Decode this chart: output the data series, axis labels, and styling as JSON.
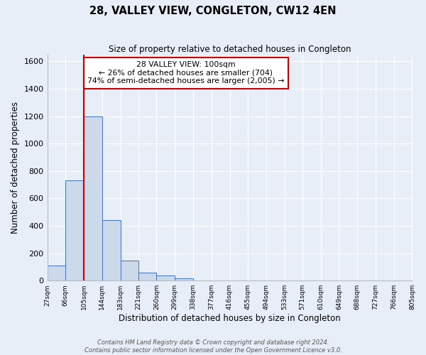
{
  "title": "28, VALLEY VIEW, CONGLETON, CW12 4EN",
  "subtitle": "Size of property relative to detached houses in Congleton",
  "xlabel": "Distribution of detached houses by size in Congleton",
  "ylabel": "Number of detached properties",
  "bin_edges": [
    27,
    66,
    105,
    144,
    183,
    221,
    260,
    299,
    338,
    377,
    416,
    455,
    494,
    533,
    571,
    610,
    649,
    688,
    727,
    766,
    805
  ],
  "bin_labels": [
    "27sqm",
    "66sqm",
    "105sqm",
    "144sqm",
    "183sqm",
    "221sqm",
    "260sqm",
    "299sqm",
    "338sqm",
    "377sqm",
    "416sqm",
    "455sqm",
    "494sqm",
    "533sqm",
    "571sqm",
    "610sqm",
    "649sqm",
    "688sqm",
    "727sqm",
    "766sqm",
    "805sqm"
  ],
  "counts": [
    110,
    730,
    1200,
    440,
    145,
    60,
    35,
    15,
    0,
    0,
    0,
    0,
    0,
    0,
    0,
    0,
    0,
    0,
    0,
    0
  ],
  "bar_facecolor": "#ccd9ea",
  "bar_edgecolor": "#4472c4",
  "background_color": "#e8eef7",
  "grid_color": "#ffffff",
  "vline_x": 105,
  "vline_color": "#cc0000",
  "ylim": [
    0,
    1650
  ],
  "yticks": [
    0,
    200,
    400,
    600,
    800,
    1000,
    1200,
    1400,
    1600
  ],
  "annotation_text": "28 VALLEY VIEW: 100sqm\n← 26% of detached houses are smaller (704)\n74% of semi-detached houses are larger (2,005) →",
  "annotation_box_edgecolor": "#cc0000",
  "annotation_box_facecolor": "#ffffff",
  "footer_line1": "Contains HM Land Registry data © Crown copyright and database right 2024.",
  "footer_line2": "Contains public sector information licensed under the Open Government Licence v3.0."
}
